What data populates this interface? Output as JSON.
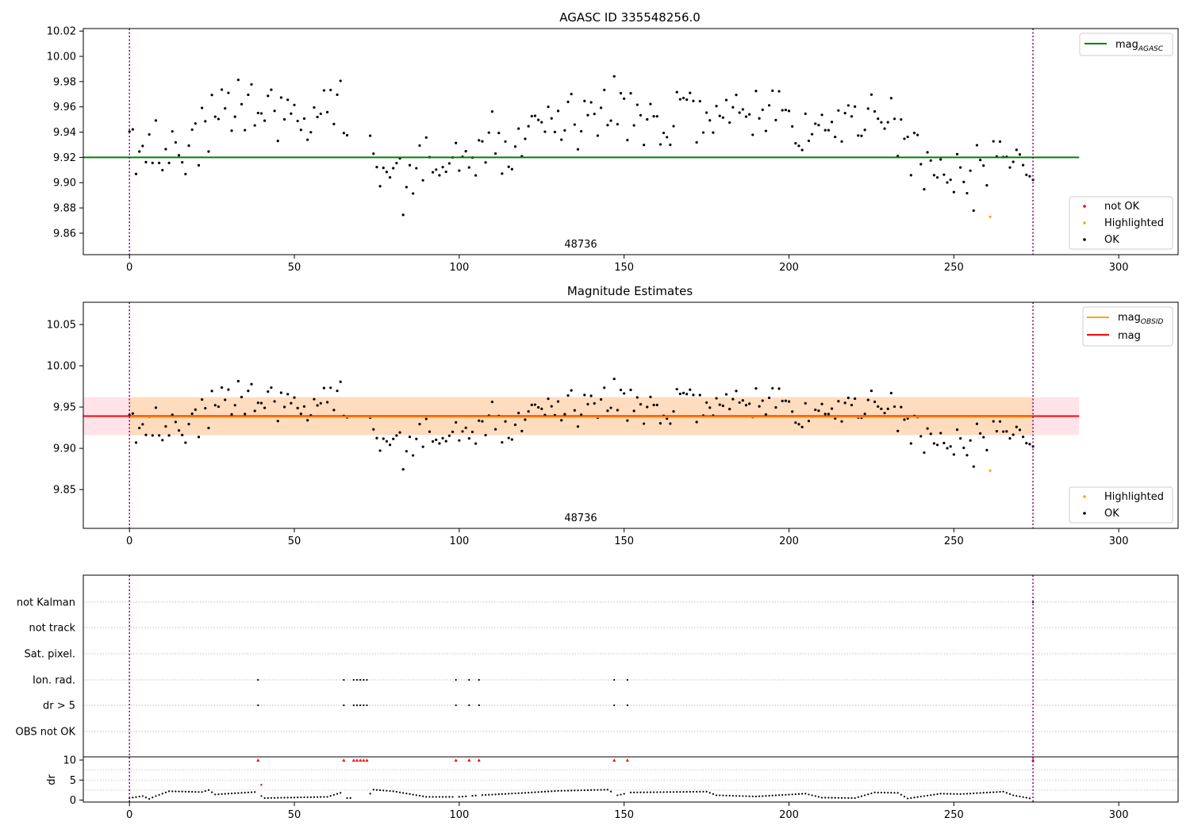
{
  "figure": {
    "panels": [
      {
        "id": "agasc",
        "title": "AGASC ID 335548256.0",
        "annotation": "48736"
      },
      {
        "id": "estimates",
        "title": "Magnitude Estimates",
        "annotation": "48736"
      },
      {
        "id": "flags",
        "title": ""
      }
    ],
    "colors": {
      "ok": "#000000",
      "highlighted": "#ffa500",
      "not_ok": "#ff0000",
      "mag_agasc": "#008000",
      "mag_obsid": "#ffa500",
      "mag": "#ff0000",
      "band_outer": "#ffc0cb",
      "band_inner": "#ffdab9",
      "obs_boundary": "#800080"
    }
  },
  "chart_data": [
    {
      "type": "scatter",
      "title": "AGASC ID 335548256.0",
      "xlim": [
        -14,
        318
      ],
      "ylim": [
        9.843,
        10.022
      ],
      "xticks": [
        0,
        50,
        100,
        150,
        200,
        250,
        300
      ],
      "yticks": [
        9.86,
        9.88,
        9.9,
        9.92,
        9.94,
        9.96,
        9.98,
        10.0,
        10.02
      ],
      "ytick_labels": [
        "9.86",
        "9.88",
        "9.90",
        "9.92",
        "9.94",
        "9.96",
        "9.98",
        "10.00",
        "10.02"
      ],
      "mag_agasc": 9.92,
      "obs_boundaries": [
        0,
        274
      ],
      "obs_label": "48736",
      "highlighted_points": [
        {
          "x": 261,
          "y": 9.873
        }
      ],
      "legend_lines": [
        {
          "name": "mag",
          "subscript": "AGASC",
          "color": "#008000"
        }
      ],
      "legend_points": [
        {
          "name": "not OK",
          "color": "#ff0000"
        },
        {
          "name": "Highlighted",
          "color": "#ffa500"
        },
        {
          "name": "OK",
          "color": "#000000"
        }
      ],
      "legend_placement": [
        "upper right",
        "lower right"
      ]
    },
    {
      "type": "scatter",
      "title": "Magnitude Estimates",
      "xlim": [
        -14,
        318
      ],
      "ylim": [
        9.803,
        10.077
      ],
      "xticks": [
        0,
        50,
        100,
        150,
        200,
        250,
        300
      ],
      "yticks": [
        9.85,
        9.9,
        9.95,
        10.0,
        10.05
      ],
      "ytick_labels": [
        "9.85",
        "9.90",
        "9.95",
        "10.00",
        "10.05"
      ],
      "mag": 9.939,
      "mag_obsid": 9.938,
      "band_outer": [
        9.916,
        9.962
      ],
      "band_inner": [
        9.916,
        9.962
      ],
      "obs_boundaries": [
        0,
        274
      ],
      "obs_label": "48736",
      "highlighted_points": [
        {
          "x": 261,
          "y": 9.873
        }
      ],
      "legend_lines": [
        {
          "name": "mag",
          "subscript": "OBSID",
          "color": "#ffa500"
        },
        {
          "name": "mag",
          "subscript": "",
          "color": "#ff0000"
        }
      ],
      "legend_points": [
        {
          "name": "Highlighted",
          "color": "#ffa500"
        },
        {
          "name": "OK",
          "color": "#000000"
        }
      ],
      "legend_placement": [
        "upper right",
        "lower right"
      ]
    },
    {
      "type": "scatter",
      "title": "",
      "xlim": [
        -14,
        318
      ],
      "xticks": [
        0,
        50,
        100,
        150,
        200,
        250,
        300
      ],
      "flag_rows": [
        "not Kalman",
        "not track",
        "Sat. pixel.",
        "Ion. rad.",
        "dr > 5",
        "OBS not OK"
      ],
      "flag_points": {
        "not Kalman": [
          274
        ],
        "not track": [],
        "Sat. pixel.": [],
        "Ion. rad.": [
          39,
          65,
          68,
          69,
          70,
          71,
          72,
          99,
          103,
          106,
          147,
          151
        ],
        "dr > 5": [
          39,
          65,
          68,
          69,
          70,
          71,
          72,
          99,
          103,
          106,
          147,
          151
        ],
        "OBS not OK": []
      },
      "dr_ylabel": "dr",
      "dr_yticks": [
        0,
        5,
        10
      ],
      "dr_ytick_labels": [
        "0",
        "5",
        "10"
      ],
      "dr_ylim": [
        -0.5,
        10.8
      ],
      "dr_clipped": [
        39,
        65,
        68,
        69,
        70,
        71,
        72,
        99,
        103,
        106,
        147,
        151,
        274
      ],
      "obs_boundaries": [
        0,
        274
      ]
    }
  ]
}
